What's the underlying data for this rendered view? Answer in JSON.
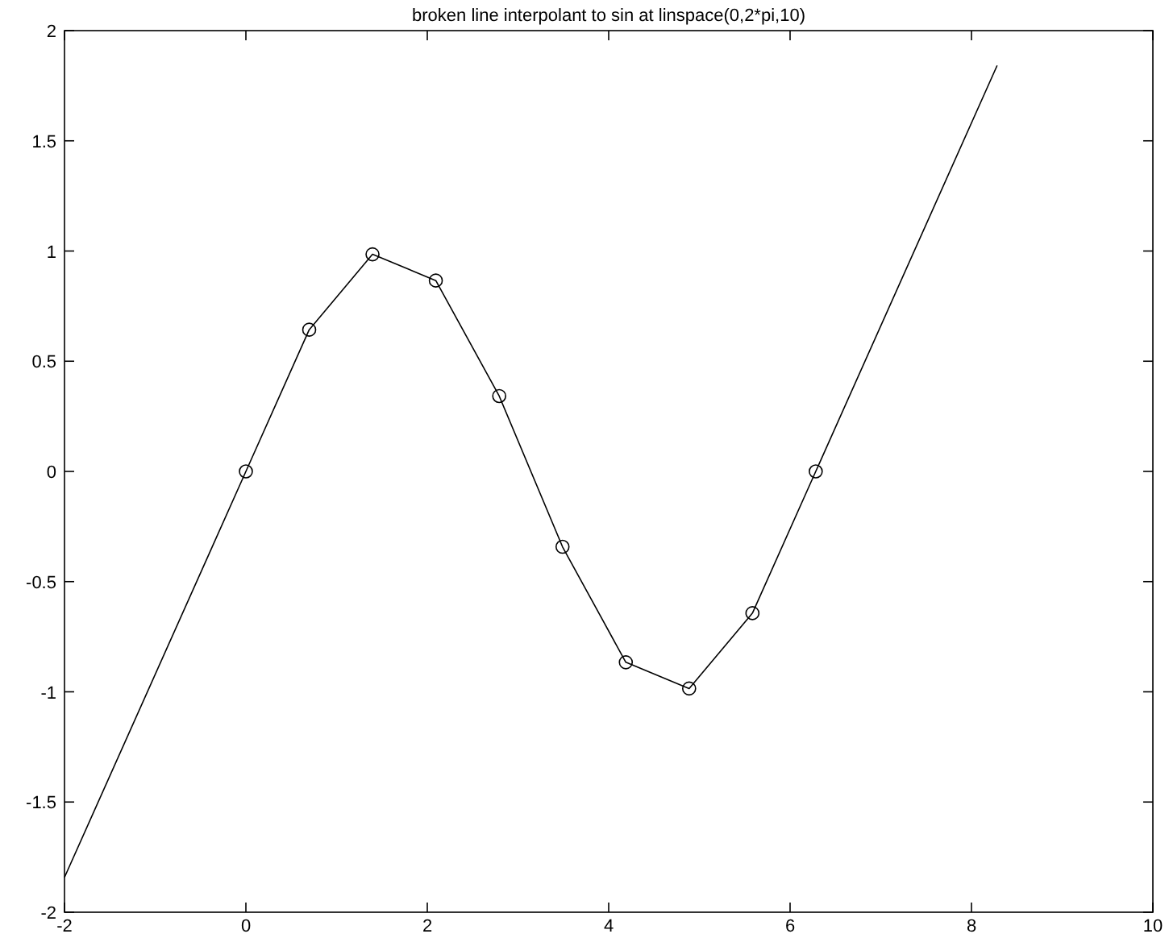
{
  "chart_data": {
    "type": "line",
    "title": "broken line interpolant to sin at linspace(0,2*pi,10)",
    "xlim": [
      -2,
      10
    ],
    "xticks": [
      -2,
      0,
      2,
      4,
      6,
      8,
      10
    ],
    "ylim": [
      -2,
      2
    ],
    "yticks": [
      -2,
      -1.5,
      -1,
      -0.5,
      0,
      0.5,
      1,
      1.5,
      2
    ],
    "grid": false,
    "series": [
      {
        "color": "#000000",
        "marker": "none",
        "x": [
          -2,
          0,
          0.698,
          1.396,
          2.094,
          2.793,
          3.491,
          4.189,
          4.887,
          5.585,
          6.283,
          8.283
        ],
        "values": [
          -1.842,
          0,
          0.643,
          0.985,
          0.866,
          0.342,
          -0.342,
          -0.866,
          -0.985,
          -0.643,
          0,
          1.842
        ]
      },
      {
        "type": "scatter",
        "color": "#000000",
        "marker": "circle",
        "x": [
          0,
          0.698,
          1.396,
          2.094,
          2.793,
          3.491,
          4.189,
          4.887,
          5.585,
          6.283
        ],
        "values": [
          0,
          0.643,
          0.985,
          0.866,
          0.342,
          -0.342,
          -0.866,
          -0.985,
          -0.643,
          0
        ]
      }
    ]
  }
}
